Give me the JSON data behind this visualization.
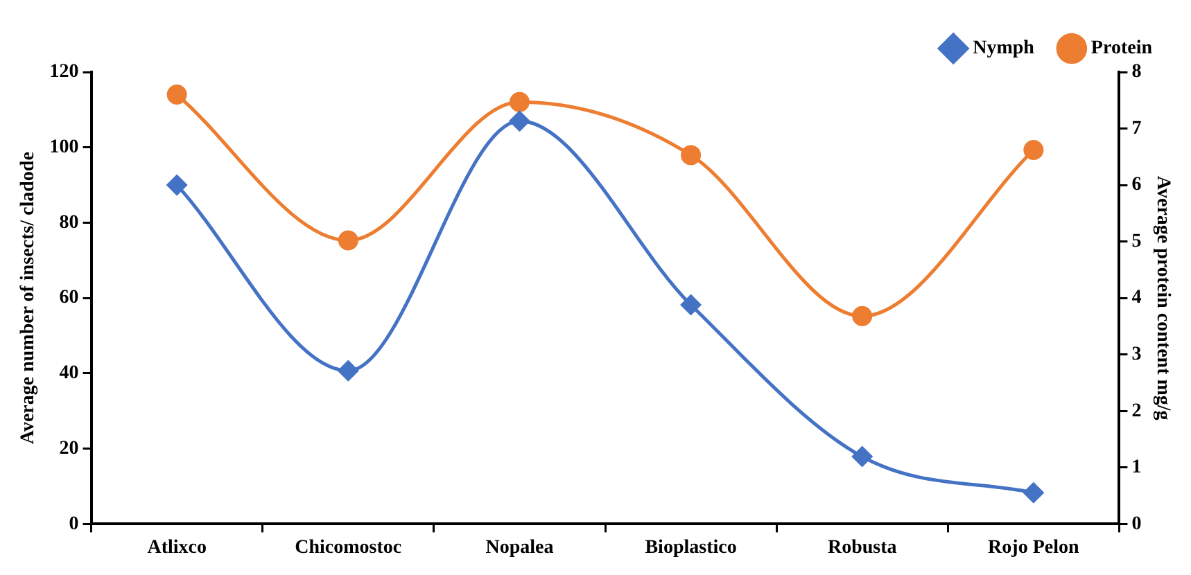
{
  "chart_data": {
    "type": "line",
    "categories": [
      "Atlixco",
      "Chicomostoc",
      "Nopalea",
      "Bioplastico",
      "Robusta",
      "Rojo Pelon"
    ],
    "ylabel": "Average number of insects/ cladode",
    "y2label": "Average protein content mg/g",
    "ylim": [
      0,
      120
    ],
    "yticks": [
      0,
      20,
      40,
      60,
      80,
      100,
      120
    ],
    "y2lim": [
      0,
      8
    ],
    "y2ticks": [
      0,
      1,
      2,
      3,
      4,
      5,
      6,
      7,
      8
    ],
    "grid": false,
    "legend": "top right",
    "series": [
      {
        "name": "Nymph",
        "color": "#4472c4",
        "marker": "diamond",
        "values": [
          90,
          40.7,
          107,
          58.2,
          17.9,
          8.3
        ]
      },
      {
        "name": "Protein",
        "color": "#ed7d31",
        "marker": "circle",
        "axis": "y2",
        "values": [
          7.6,
          5.02,
          7.47,
          6.53,
          3.68,
          6.62
        ]
      }
    ]
  }
}
